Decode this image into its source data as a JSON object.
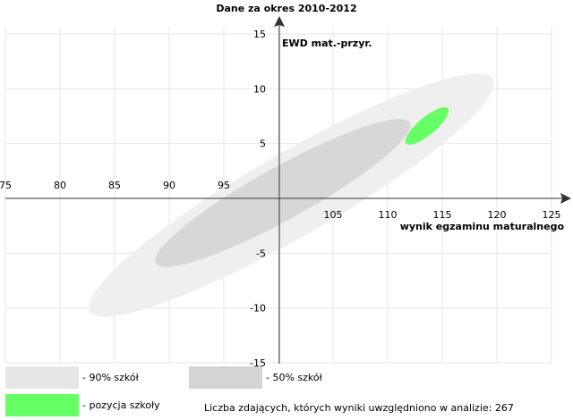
{
  "chart_data": {
    "type": "scatter",
    "title": "Dane za okres 2010-2012",
    "xlabel": "wynik egzaminu maturalnego",
    "ylabel": "EWD mat.-przyr.",
    "xlim": [
      75,
      125
    ],
    "ylim": [
      -15,
      15
    ],
    "grid": true,
    "x_ticks": [
      "75",
      "80",
      "85",
      "90",
      "95",
      "105",
      "110",
      "115",
      "120",
      "125"
    ],
    "y_ticks": [
      "15",
      "10",
      "5",
      "-5",
      "-10",
      "-15"
    ],
    "regions": [
      {
        "name": "- 90% szkół",
        "center": [
          101.2,
          0.3
        ],
        "semi_axes": [
          21.3,
          3.8
        ],
        "angle_deg": 30,
        "color": "#efefef"
      },
      {
        "name": "- 50% szkół",
        "center": [
          100.4,
          0.5
        ],
        "semi_axes": [
          13.3,
          2.4
        ],
        "angle_deg": 29,
        "color": "#d7d7d7"
      },
      {
        "name": "- pozycja szkoły",
        "center": [
          113.6,
          6.6
        ],
        "semi_axes": [
          2.5,
          0.8
        ],
        "angle_deg": 40,
        "color": "#66ff66"
      }
    ],
    "legend": [
      {
        "label": "- 90% szkół",
        "color": "#e6e6e6"
      },
      {
        "label": "- 50% szkół",
        "color": "#d4d4d4"
      },
      {
        "label": "- pozycja szkoły",
        "color": "#66ff66"
      }
    ],
    "note": "Liczba zdających, których wyniki uwzględniono w analizie: 267"
  }
}
